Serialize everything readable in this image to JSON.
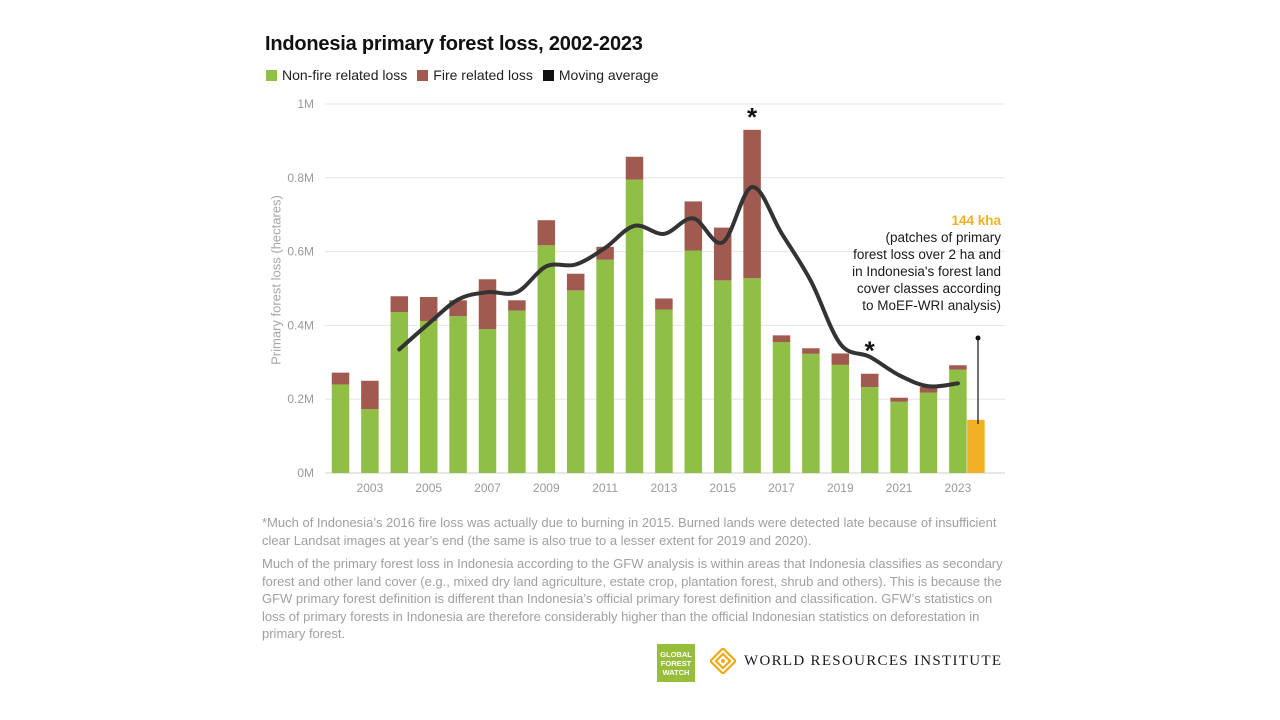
{
  "chart_data": {
    "type": "bar",
    "title": "Indonesia primary forest loss, 2002-2023",
    "xlabel": "",
    "ylabel": "Primary forest loss (hectares)",
    "ylim": [
      0,
      1000000
    ],
    "y_ticks": [
      {
        "value": 0,
        "label": "0M"
      },
      {
        "value": 200000,
        "label": "0.2M"
      },
      {
        "value": 400000,
        "label": "0.4M"
      },
      {
        "value": 600000,
        "label": "0.6M"
      },
      {
        "value": 800000,
        "label": "0.8M"
      },
      {
        "value": 1000000,
        "label": "1M"
      }
    ],
    "categories": [
      "2002",
      "2003",
      "2004",
      "2005",
      "2006",
      "2007",
      "2008",
      "2009",
      "2010",
      "2011",
      "2012",
      "2013",
      "2014",
      "2015",
      "2016",
      "2017",
      "2018",
      "2019",
      "2020",
      "2021",
      "2022",
      "2023"
    ],
    "x_tick_labels": [
      "2003",
      "2005",
      "2007",
      "2009",
      "2011",
      "2013",
      "2015",
      "2017",
      "2019",
      "2021",
      "2023"
    ],
    "stacked": true,
    "legend": [
      "Non-fire related loss",
      "Fire related loss",
      "Moving average"
    ],
    "legend_position": "top-left",
    "series": [
      {
        "name": "Non-fire related loss",
        "color": "#8fbf44",
        "values": [
          240000,
          173000,
          436000,
          412000,
          425000,
          390000,
          440000,
          617000,
          495000,
          578000,
          795000,
          443000,
          603000,
          522000,
          528000,
          355000,
          323000,
          293000,
          233000,
          193000,
          218000,
          280000
        ]
      },
      {
        "name": "Fire related loss",
        "color": "#a05a4f",
        "values": [
          32000,
          77000,
          43000,
          65000,
          43000,
          135000,
          28000,
          68000,
          45000,
          35000,
          62000,
          30000,
          133000,
          143000,
          402000,
          18000,
          15000,
          31000,
          36000,
          11000,
          15000,
          12000
        ]
      },
      {
        "name": "Moving average",
        "color": "#333333",
        "type": "line",
        "x": [
          "2004",
          "2005",
          "2006",
          "2007",
          "2008",
          "2009",
          "2010",
          "2011",
          "2012",
          "2013",
          "2014",
          "2015",
          "2016",
          "2017",
          "2018",
          "2019",
          "2020",
          "2021",
          "2022",
          "2023"
        ],
        "values": [
          335000,
          405000,
          470000,
          490000,
          490000,
          560000,
          565000,
          610000,
          670000,
          648000,
          690000,
          625000,
          775000,
          650000,
          520000,
          350000,
          315000,
          265000,
          235000,
          243000
        ]
      }
    ],
    "highlight_bar": {
      "category": "2023",
      "value": 144000,
      "label": "144 kha",
      "color": "#f2b125"
    },
    "annotations": [
      {
        "category": "2016",
        "text": "*"
      },
      {
        "category": "2020",
        "text": "*"
      }
    ],
    "grid": true
  },
  "annotation": {
    "value": "144 kha",
    "description": "(patches of primary forest loss over 2 ha and in Indonesia's forest land cover classes according to MoEF-WRI analysis)"
  },
  "footnotes": [
    "*Much of Indonesia’s 2016 fire loss was actually due to burning in 2015. Burned lands were detected late because of insufficient clear Landsat images at year’s end (the same is also true to a lesser extent for 2019 and 2020).",
    " Much of the primary forest loss in Indonesia according to the GFW analysis is within areas that Indonesia classifies as secondary forest and other land cover (e.g., mixed dry land agriculture, estate crop, plantation forest, shrub and others). This is because the GFW primary forest definition is different than Indonesia’s official primary forest definition and classification. GFW’s statistics on loss of primary forests in Indonesia are therefore considerably higher than the official Indonesian statistics on deforestation in primary forest."
  ],
  "logos": {
    "gfw_line1": "GLOBAL",
    "gfw_line2": "FOREST",
    "gfw_line3": "WATCH",
    "wri": "WORLD RESOURCES INSTITUTE"
  },
  "colors": {
    "non_fire": "#8fbf44",
    "fire": "#a05a4f",
    "moving_average": "#333333",
    "highlight": "#f2b125",
    "gfw_green": "#97bd3d",
    "wri_orange": "#f0a818"
  }
}
